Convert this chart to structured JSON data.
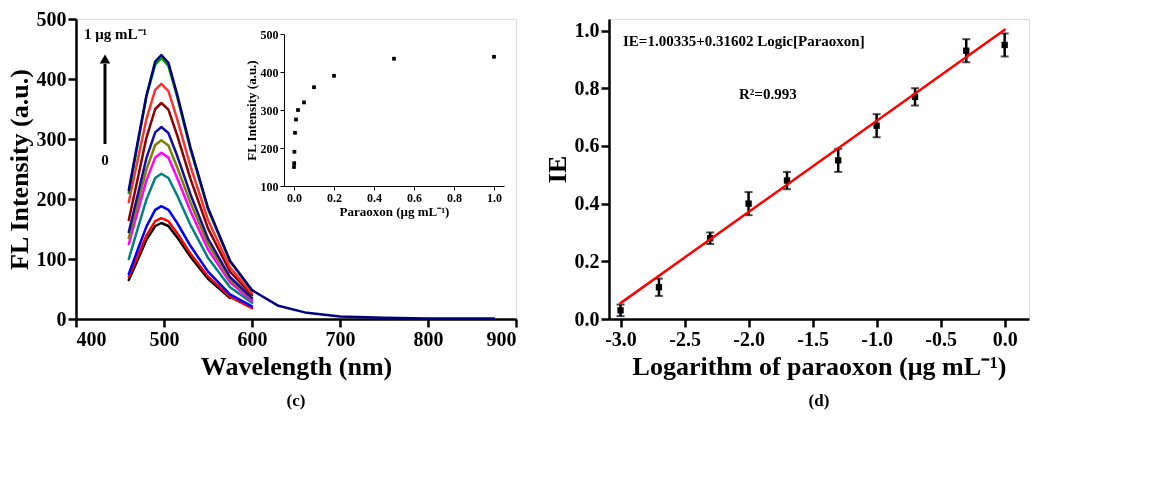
{
  "chart_data": [
    {
      "type": "line",
      "xlabel": "Wavelength (nm)",
      "ylabel": "FL Intensity (a.u.)",
      "xlim": [
        400,
        900
      ],
      "ylim": [
        0,
        500
      ],
      "xticks": [
        400,
        500,
        600,
        700,
        800,
        900
      ],
      "yticks": [
        0,
        100,
        200,
        300,
        400,
        500
      ],
      "grid": false,
      "line_style": "solid",
      "annotations": [
        "1 μg mL⁻¹",
        "0",
        "(c)"
      ],
      "x": [
        460,
        470,
        480,
        490,
        497,
        505,
        515,
        530,
        550,
        575,
        600,
        630,
        660,
        700,
        750,
        800,
        850,
        875
      ],
      "series": [
        {
          "color": "#000000",
          "values": [
            65,
            98,
            132,
            155,
            160,
            155,
            136,
            104,
            67,
            35,
            null,
            null,
            null,
            null,
            null,
            null,
            null,
            null
          ]
        },
        {
          "color": "#ff0000",
          "values": [
            70,
            104,
            139,
            163,
            168,
            163,
            143,
            109,
            71,
            37,
            18,
            null,
            null,
            null,
            null,
            null,
            null,
            null
          ]
        },
        {
          "color": "#0000ff",
          "values": [
            75,
            115,
            154,
            182,
            188,
            182,
            160,
            122,
            79,
            41,
            21,
            null,
            null,
            null,
            null,
            null,
            null,
            null
          ]
        },
        {
          "color": "#008080",
          "values": [
            100,
            150,
            199,
            235,
            242,
            235,
            206,
            157,
            102,
            53,
            27,
            null,
            null,
            null,
            null,
            null,
            null,
            null
          ]
        },
        {
          "color": "#ff00ff",
          "values": [
            125,
            178,
            231,
            269,
            277,
            269,
            235,
            180,
            116,
            61,
            30,
            null,
            null,
            null,
            null,
            null,
            null,
            null
          ]
        },
        {
          "color": "#808000",
          "values": [
            135,
            192,
            249,
            290,
            298,
            289,
            253,
            194,
            125,
            66,
            33,
            null,
            null,
            null,
            null,
            null,
            null,
            null
          ]
        },
        {
          "color": "#1010a0",
          "values": [
            145,
            206,
            268,
            311,
            320,
            310,
            272,
            208,
            134,
            70,
            35,
            null,
            null,
            null,
            null,
            null,
            null,
            null
          ]
        },
        {
          "color": "#8b0000",
          "values": [
            165,
            233,
            302,
            350,
            360,
            349,
            306,
            234,
            151,
            79,
            40,
            null,
            null,
            null,
            null,
            null,
            null,
            null
          ]
        },
        {
          "color": "#ff3030",
          "values": [
            195,
            264,
            333,
            382,
            392,
            380,
            333,
            255,
            165,
            86,
            43,
            null,
            null,
            null,
            null,
            null,
            null,
            null
          ]
        },
        {
          "color": "#00a000",
          "values": [
            210,
            290,
            371,
            424,
            435,
            422,
            370,
            283,
            183,
            96,
            48,
            null,
            null,
            null,
            null,
            null,
            null,
            null
          ]
        },
        {
          "color": "#000080",
          "values": [
            215,
            294,
            372,
            429,
            440,
            427,
            374,
            286,
            185,
            97,
            48,
            22,
            11,
            4,
            2,
            1,
            1,
            1
          ]
        }
      ]
    },
    {
      "type": "scatter",
      "xlabel": "Paraoxon (μg mL⁻¹)",
      "ylabel": "FL Intensity (a.u.)",
      "xlim": [
        -0.05,
        1.05
      ],
      "ylim": [
        100,
        500
      ],
      "xticks": [
        {
          "value": 0,
          "label": "0.0"
        },
        {
          "value": 0.2,
          "label": "0.2"
        },
        {
          "value": 0.4,
          "label": "0.4"
        },
        {
          "value": 0.6,
          "label": "0.6"
        },
        {
          "value": 0.8,
          "label": "0.8"
        },
        {
          "value": 1,
          "label": "1.0"
        }
      ],
      "yticks": [
        100,
        200,
        300,
        400,
        500
      ],
      "grid": false,
      "marker": "square",
      "x": [
        0,
        0.001,
        0.002,
        0.005,
        0.01,
        0.02,
        0.05,
        0.1,
        0.2,
        0.5,
        1.0
      ],
      "series": [
        {
          "color": "#000000",
          "values": [
            150,
            160,
            190,
            240,
            275,
            300,
            320,
            360,
            390,
            435,
            440
          ]
        }
      ]
    },
    {
      "type": "scatter",
      "xlabel": "Logarithm of paraoxon (μg mL⁻¹)",
      "ylabel": "IE",
      "xlim": [
        -3.09,
        0.19
      ],
      "ylim": [
        0,
        1.04
      ],
      "xticks": [
        {
          "value": -3,
          "label": "-3.0"
        },
        {
          "value": -2.5,
          "label": "-2.5"
        },
        {
          "value": -2,
          "label": "-2.0"
        },
        {
          "value": -1.5,
          "label": "-1.5"
        },
        {
          "value": -1,
          "label": "-1.0"
        },
        {
          "value": -0.5,
          "label": "-0.5"
        },
        {
          "value": 0,
          "label": "0.0"
        }
      ],
      "yticks": [
        {
          "value": 0,
          "label": "0.0"
        },
        {
          "value": 0.2,
          "label": "0.2"
        },
        {
          "value": 0.4,
          "label": "0.4"
        },
        {
          "value": 0.6,
          "label": "0.6"
        },
        {
          "value": 0.8,
          "label": "0.8"
        },
        {
          "value": 1,
          "label": "1.0"
        }
      ],
      "grid": false,
      "marker": "square",
      "annotations": [
        "IE=1.00335+0.31602 Logic[Paraoxon]",
        "R²=0.993",
        "(d)"
      ],
      "x": [
        -3,
        -2.7,
        -2.3,
        -2,
        -1.7,
        -1.3,
        -1,
        -0.7,
        -0.3,
        0
      ],
      "series": [
        {
          "color": "#000000",
          "values": [
            0.03,
            0.11,
            0.28,
            0.4,
            0.48,
            0.55,
            0.67,
            0.77,
            0.93,
            0.95
          ],
          "errors": [
            0.02,
            0.03,
            0.02,
            0.04,
            0.03,
            0.04,
            0.04,
            0.03,
            0.04,
            0.04
          ]
        },
        {
          "type": "line",
          "marker": "none",
          "color": "#ff0000",
          "x": [
            -3,
            0
          ],
          "values": [
            0.055,
            1.003
          ]
        }
      ]
    }
  ]
}
